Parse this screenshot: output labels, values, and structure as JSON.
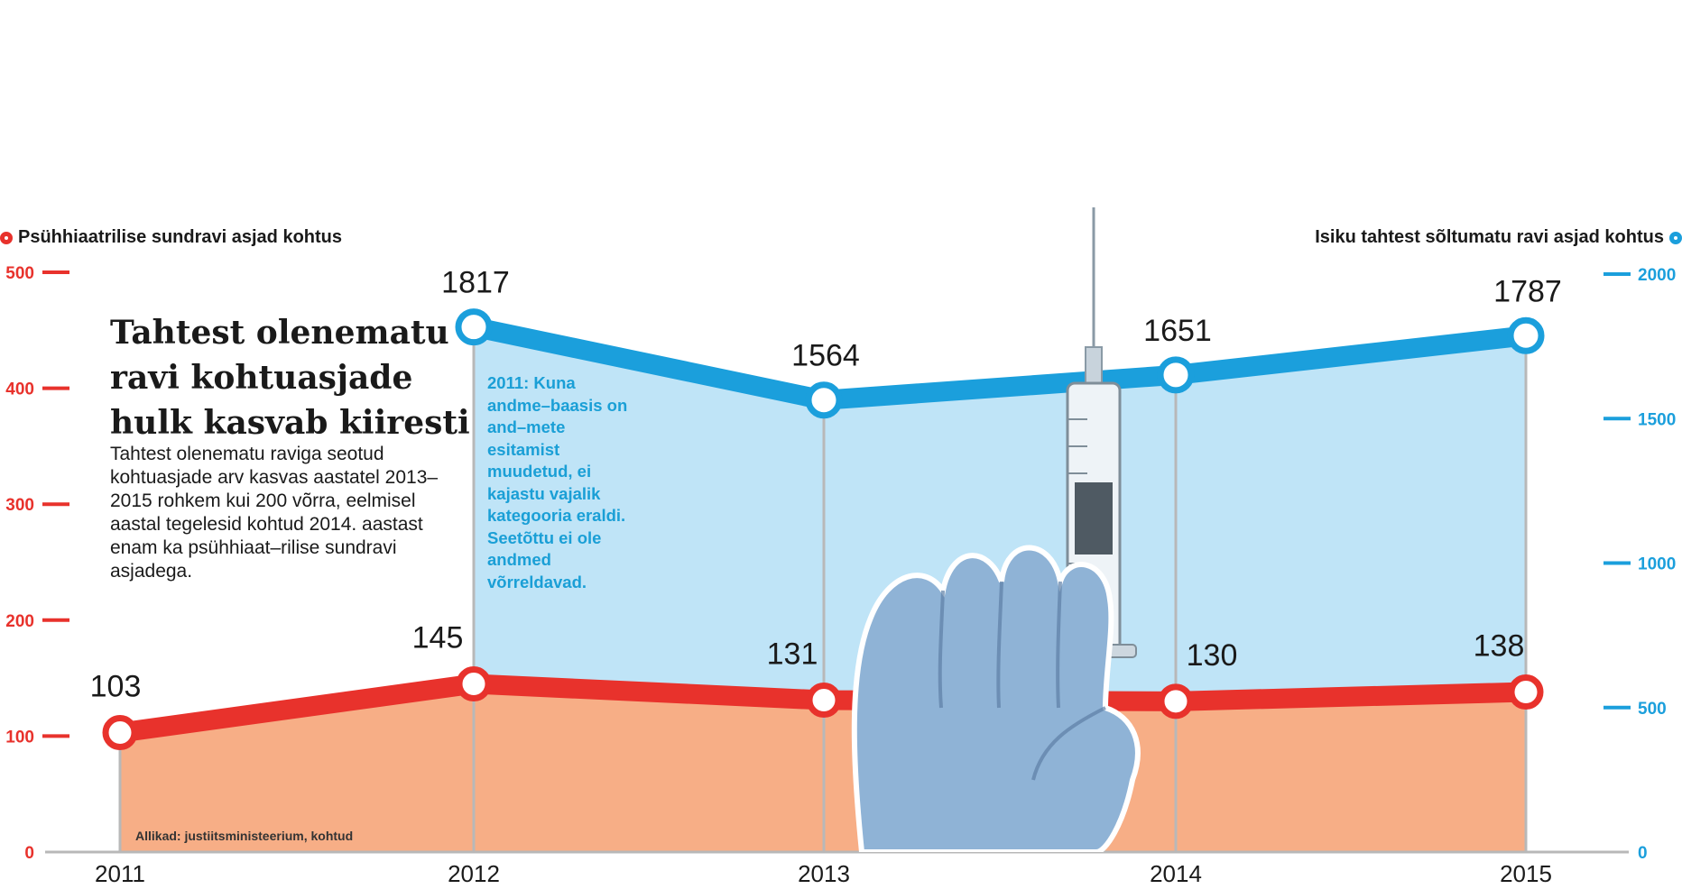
{
  "headline": "Tahtest olenematu ravi kohtuasjade hulk kasvab kiiresti",
  "body": "Tahtest olenematu raviga seotud kohtuasjade arv kasvas aastatel 2013–2015 rohkem kui 200 võrra, eelmisel aastal tegelesid kohtud 2014. aastast enam ka psühhiaat–rilise sundravi asjadega.",
  "note": "2011: Kuna andme–baasis on and–mete esitamist muudetud, ei kajastu vajalik kategooria eraldi. Seetõttu ei ole andmed võrreldavad.",
  "source": "Allikad: justiitsministeerium, kohtud",
  "colors": {
    "red": "#e8322c",
    "blue": "#1b9fdc",
    "orange_fill": "#f7ae86",
    "blue_fill": "#bfe4f7",
    "gray": "#b8b8b8"
  },
  "image": {
    "icon": "syringe-glove-icon"
  },
  "chart_data": {
    "type": "line",
    "categories": [
      "2011",
      "2012",
      "2013",
      "2014",
      "2015"
    ],
    "series": [
      {
        "name": "Psühhiaatrilise sundravi asjad kohtus",
        "axis": "left",
        "color": "#e8322c",
        "values": [
          103,
          145,
          131,
          130,
          138
        ]
      },
      {
        "name": "Isiku tahtest sõltumatu ravi asjad kohtus",
        "axis": "right",
        "color": "#1b9fdc",
        "values": [
          null,
          1817,
          1564,
          1651,
          1787
        ]
      }
    ],
    "left_axis": {
      "ticks": [
        "0",
        "100",
        "200",
        "300",
        "400",
        "500"
      ],
      "ylim": [
        0,
        500
      ]
    },
    "right_axis": {
      "ticks": [
        "0",
        "500",
        "1000",
        "1500",
        "2000"
      ],
      "ylim": [
        0,
        2000
      ]
    },
    "legend": "top"
  }
}
